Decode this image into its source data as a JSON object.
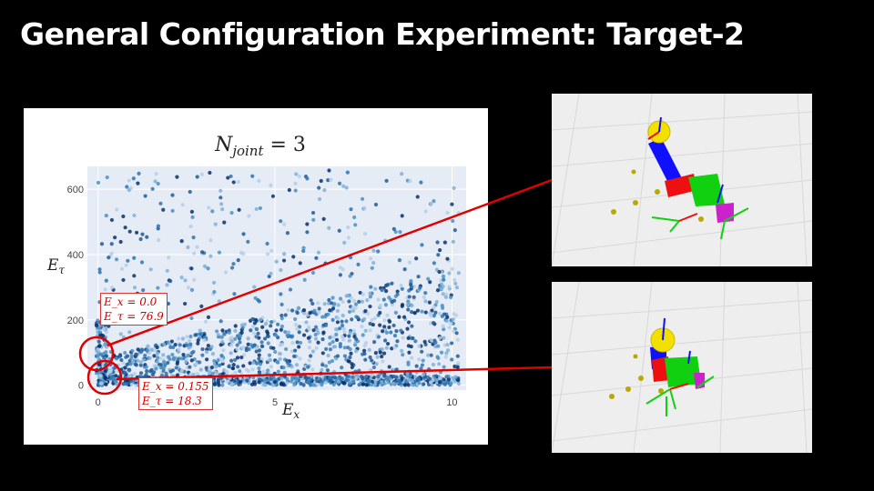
{
  "slide": {
    "title": "General Configuration Experiment: Target-2"
  },
  "chart_data": {
    "type": "scatter",
    "title": "N_joint = 3",
    "title_base": "N",
    "title_sub": "joint",
    "title_rest": " = 3",
    "xlabel_base": "E",
    "xlabel_sub": "x",
    "ylabel_base": "E",
    "ylabel_sub": "τ",
    "xlim": [
      -0.3,
      10.4
    ],
    "ylim": [
      -15,
      670
    ],
    "x_ticks": [
      0,
      5,
      10
    ],
    "y_ticks": [
      0,
      200,
      400,
      600
    ],
    "grid": true,
    "point_color": "#1f5a96",
    "annotations": [
      {
        "name": "annotation-top",
        "x": 0.0,
        "y": 76.9,
        "line1": "E_x = 0.0",
        "line2": "E_τ = 76.9"
      },
      {
        "name": "annotation-bottom",
        "x": 0.155,
        "y": 18.3,
        "line1": "E_x = 0.155",
        "line2": "E_τ = 18.3"
      }
    ]
  },
  "colors": {
    "highlight": "#e00000",
    "robot_link_blue": "#1010ff",
    "robot_link_green": "#10d010",
    "robot_link_red": "#ee1010",
    "robot_link_magenta": "#cc22cc",
    "ball": "#f2e000"
  }
}
